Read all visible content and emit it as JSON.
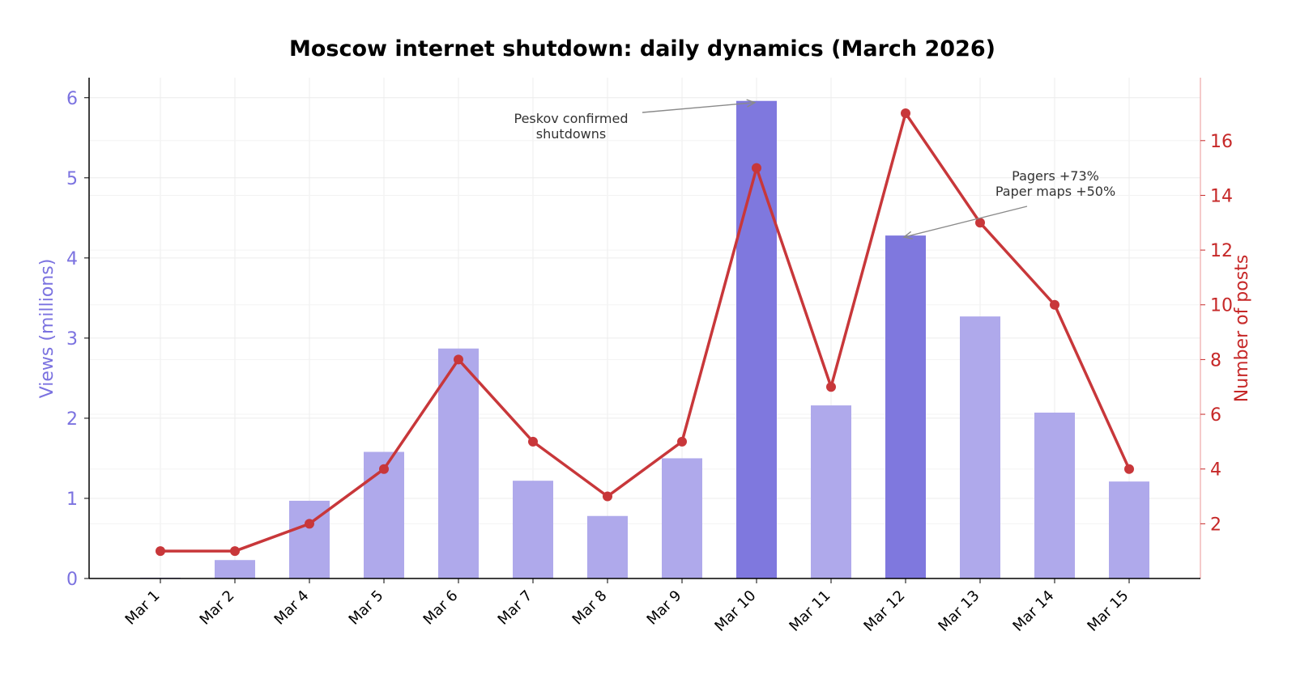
{
  "chart_data": {
    "type": "bar",
    "title": "Moscow internet shutdown: daily dynamics (March 2026)",
    "categories": [
      "Mar 1",
      "Mar 2",
      "Mar 4",
      "Mar 5",
      "Mar 6",
      "Mar 7",
      "Mar 8",
      "Mar 9",
      "Mar 10",
      "Mar 11",
      "Mar 12",
      "Mar 13",
      "Mar 14",
      "Mar 15"
    ],
    "series": [
      {
        "type": "bar",
        "axis": "left",
        "values": [
          0.01,
          0.23,
          0.97,
          1.58,
          2.87,
          1.22,
          0.78,
          1.5,
          5.96,
          2.16,
          4.28,
          3.27,
          2.07,
          1.21
        ],
        "highlight": [
          false,
          false,
          false,
          false,
          false,
          false,
          false,
          false,
          true,
          false,
          true,
          false,
          false,
          false
        ],
        "color": "#afa9eb",
        "highlight_color": "#7f78de"
      },
      {
        "type": "line",
        "axis": "right",
        "values": [
          1,
          1,
          2,
          4,
          8,
          5,
          3,
          5,
          15,
          7,
          17,
          13,
          10,
          4
        ],
        "color": "#c8373a"
      }
    ],
    "ylabel": "Views (millions)",
    "ylabel_right": "Number of posts",
    "ylim": [
      0,
      6.25
    ],
    "ylim_right": [
      0,
      18.3
    ],
    "yticks": [
      "0",
      "1",
      "2",
      "3",
      "4",
      "5",
      "6"
    ],
    "yticks_right": [
      "2",
      "4",
      "6",
      "8",
      "10",
      "12",
      "14",
      "16"
    ],
    "grid": true,
    "annotations": [
      {
        "lines": [
          "Peskov confirmed",
          "shutdowns"
        ],
        "target_category": "Mar 10",
        "target_axis": "left",
        "target_value": 5.96
      },
      {
        "lines": [
          "Pagers +73%",
          "Paper maps +50%"
        ],
        "target_category": "Mar 12",
        "target_axis": "left",
        "target_value": 4.28
      }
    ]
  }
}
